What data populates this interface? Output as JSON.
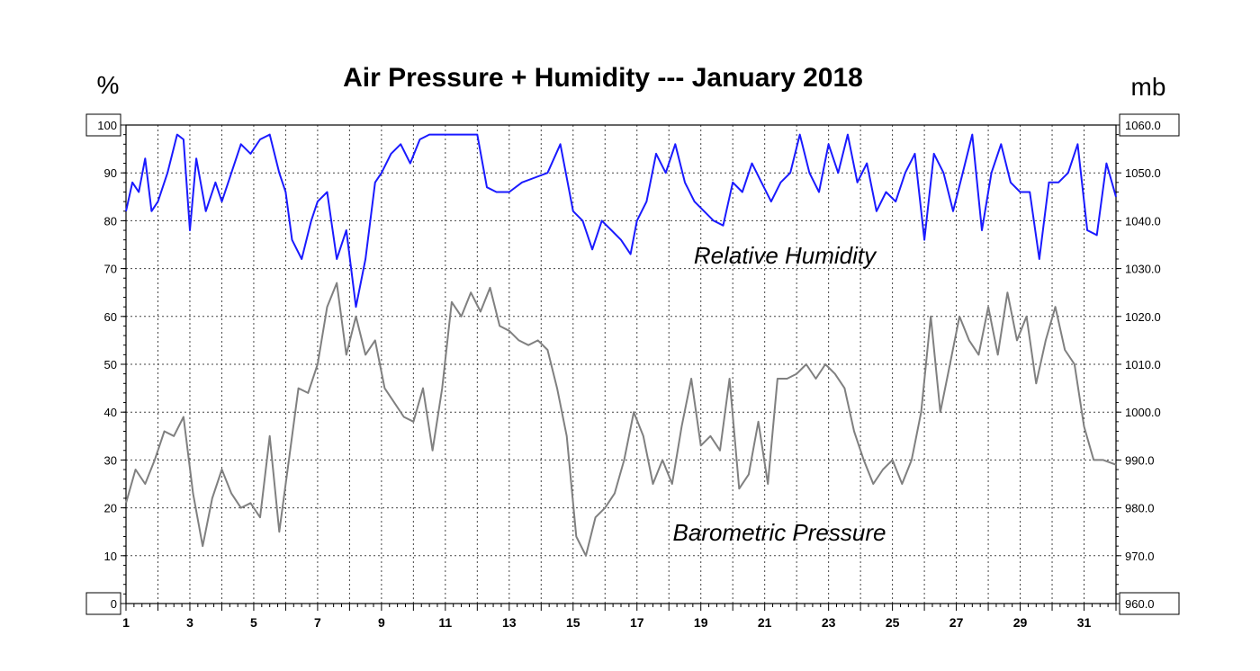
{
  "chart_data": {
    "type": "line",
    "title": "Air Pressure + Humidity --- January 2018",
    "left_axis": {
      "unit": "%",
      "range": [
        0,
        100
      ],
      "ticks": [
        "0",
        "10",
        "20",
        "30",
        "40",
        "50",
        "60",
        "70",
        "80",
        "90",
        "100"
      ]
    },
    "right_axis": {
      "unit": "mb",
      "range": [
        960,
        1060
      ],
      "ticks": [
        "960.0",
        "970.0",
        "980.0",
        "990.0",
        "1000.0",
        "1010.0",
        "1020.0",
        "1030.0",
        "1040.0",
        "1050.0",
        "1060.0"
      ]
    },
    "x_axis": {
      "range": [
        1,
        32
      ],
      "ticks": [
        "1",
        "3",
        "5",
        "7",
        "9",
        "11",
        "13",
        "15",
        "17",
        "19",
        "21",
        "23",
        "25",
        "27",
        "29",
        "31"
      ]
    },
    "grid": true,
    "series": [
      {
        "name": "Relative Humidity",
        "axis": "left",
        "color": "#1a1aff",
        "x": [
          1.0,
          1.2,
          1.4,
          1.6,
          1.8,
          2.0,
          2.3,
          2.6,
          2.8,
          3.0,
          3.2,
          3.5,
          3.8,
          4.0,
          4.3,
          4.6,
          4.9,
          5.2,
          5.5,
          5.8,
          6.0,
          6.2,
          6.5,
          6.8,
          7.0,
          7.3,
          7.6,
          7.9,
          8.2,
          8.5,
          8.8,
          9.0,
          9.3,
          9.6,
          9.9,
          10.2,
          10.5,
          10.8,
          11.1,
          11.5,
          12.0,
          12.3,
          12.6,
          13.0,
          13.4,
          13.8,
          14.2,
          14.6,
          15.0,
          15.3,
          15.6,
          15.9,
          16.2,
          16.5,
          16.8,
          17.0,
          17.3,
          17.6,
          17.9,
          18.2,
          18.5,
          18.8,
          19.1,
          19.4,
          19.7,
          20.0,
          20.3,
          20.6,
          20.9,
          21.2,
          21.5,
          21.8,
          22.1,
          22.4,
          22.7,
          23.0,
          23.3,
          23.6,
          23.9,
          24.2,
          24.5,
          24.8,
          25.1,
          25.4,
          25.7,
          26.0,
          26.3,
          26.6,
          26.9,
          27.2,
          27.5,
          27.8,
          28.1,
          28.4,
          28.7,
          29.0,
          29.3,
          29.6,
          29.9,
          30.2,
          30.5,
          30.8,
          31.1,
          31.4,
          31.7,
          32.0
        ],
        "y": [
          82,
          88,
          86,
          93,
          82,
          84,
          90,
          98,
          97,
          78,
          93,
          82,
          88,
          84,
          90,
          96,
          94,
          97,
          98,
          90,
          86,
          76,
          72,
          80,
          84,
          86,
          72,
          78,
          62,
          72,
          88,
          90,
          94,
          96,
          92,
          97,
          98,
          98,
          98,
          98,
          98,
          87,
          86,
          86,
          88,
          89,
          90,
          96,
          82,
          80,
          74,
          80,
          78,
          76,
          73,
          80,
          84,
          94,
          90,
          96,
          88,
          84,
          82,
          80,
          79,
          88,
          86,
          92,
          88,
          84,
          88,
          90,
          98,
          90,
          86,
          96,
          90,
          98,
          88,
          92,
          82,
          86,
          84,
          90,
          94,
          76,
          94,
          90,
          82,
          90,
          98,
          78,
          90,
          96,
          88,
          86,
          86,
          72,
          88,
          88,
          90,
          96,
          78,
          77,
          92,
          85
        ]
      },
      {
        "name": "Barometric Pressure",
        "axis": "right",
        "color": "#808080",
        "x": [
          1.0,
          1.3,
          1.6,
          1.9,
          2.2,
          2.5,
          2.8,
          3.1,
          3.4,
          3.7,
          4.0,
          4.3,
          4.6,
          4.9,
          5.2,
          5.5,
          5.8,
          6.1,
          6.4,
          6.7,
          7.0,
          7.3,
          7.6,
          7.9,
          8.2,
          8.5,
          8.8,
          9.1,
          9.4,
          9.7,
          10.0,
          10.3,
          10.6,
          10.9,
          11.2,
          11.5,
          11.8,
          12.1,
          12.4,
          12.7,
          13.0,
          13.3,
          13.6,
          13.9,
          14.2,
          14.5,
          14.8,
          15.1,
          15.4,
          15.7,
          16.0,
          16.3,
          16.6,
          16.9,
          17.2,
          17.5,
          17.8,
          18.1,
          18.4,
          18.7,
          19.0,
          19.3,
          19.6,
          19.9,
          20.2,
          20.5,
          20.8,
          21.1,
          21.4,
          21.7,
          22.0,
          22.3,
          22.6,
          22.9,
          23.2,
          23.5,
          23.8,
          24.1,
          24.4,
          24.7,
          25.0,
          25.3,
          25.6,
          25.9,
          26.2,
          26.5,
          26.8,
          27.1,
          27.4,
          27.7,
          28.0,
          28.3,
          28.6,
          28.9,
          29.2,
          29.5,
          29.8,
          30.1,
          30.4,
          30.7,
          31.0,
          31.3,
          31.6,
          32.0
        ],
        "y": [
          981,
          988,
          985,
          990,
          996,
          995,
          999,
          983,
          972,
          982,
          988,
          983,
          980,
          981,
          978,
          995,
          975,
          990,
          1005,
          1004,
          1010,
          1022,
          1027,
          1012,
          1020,
          1012,
          1015,
          1005,
          1002,
          999,
          998,
          1005,
          992,
          1005,
          1023,
          1020,
          1025,
          1021,
          1026,
          1018,
          1017,
          1015,
          1014,
          1015,
          1013,
          1005,
          995,
          974,
          970,
          978,
          980,
          983,
          990,
          1000,
          995,
          985,
          990,
          985,
          997,
          1007,
          993,
          995,
          992,
          1007,
          984,
          987,
          998,
          985,
          1007,
          1007,
          1008,
          1010,
          1007,
          1010,
          1008,
          1005,
          996,
          990,
          985,
          988,
          990,
          985,
          990,
          1000,
          1020,
          1000,
          1010,
          1020,
          1015,
          1012,
          1022,
          1012,
          1025,
          1015,
          1020,
          1006,
          1015,
          1022,
          1013,
          1010,
          997,
          990,
          990,
          989
        ]
      }
    ],
    "annotations": [
      "Relative Humidity",
      "Barometric Pressure"
    ]
  }
}
